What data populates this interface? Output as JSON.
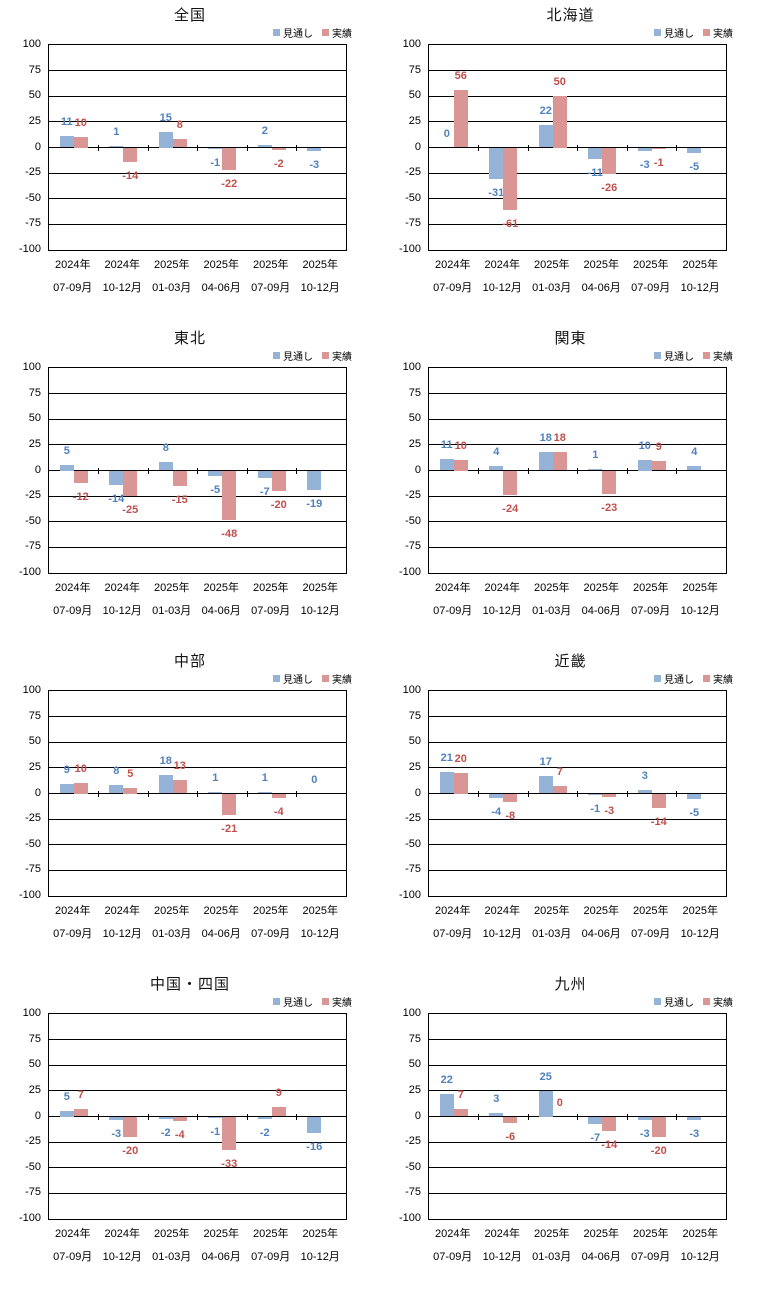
{
  "legend": {
    "forecast_label": "見通し",
    "actual_label": "実績"
  },
  "colors": {
    "forecast_bar": "#95B3D7",
    "actual_bar": "#D99694",
    "forecast_label": "#4F81BD",
    "actual_label": "#C0504D",
    "axis_line": "#000000",
    "text": "#000000"
  },
  "axis": {
    "y_ticks": [
      100,
      75,
      50,
      25,
      0,
      -25,
      -50,
      -75,
      -100
    ],
    "y_min": -100,
    "y_max": 100,
    "grid": true
  },
  "chart_data": [
    {
      "type": "bar",
      "title": "全国",
      "ylim": [
        -100,
        100
      ],
      "categories": [
        [
          "2024年",
          "07-09月"
        ],
        [
          "2024年",
          "10-12月"
        ],
        [
          "2025年",
          "01-03月"
        ],
        [
          "2025年",
          "04-06月"
        ],
        [
          "2025年",
          "07-09月"
        ],
        [
          "2025年",
          "10-12月"
        ]
      ],
      "series": [
        {
          "name": "見通し",
          "values": [
            11,
            1,
            15,
            -1,
            2,
            -3
          ]
        },
        {
          "name": "実績",
          "values": [
            10,
            -14,
            8,
            -22,
            -2,
            null
          ]
        }
      ]
    },
    {
      "type": "bar",
      "title": "北海道",
      "ylim": [
        -100,
        100
      ],
      "categories": [
        [
          "2024年",
          "07-09月"
        ],
        [
          "2024年",
          "10-12月"
        ],
        [
          "2025年",
          "01-03月"
        ],
        [
          "2025年",
          "04-06月"
        ],
        [
          "2025年",
          "07-09月"
        ],
        [
          "2025年",
          "10-12月"
        ]
      ],
      "series": [
        {
          "name": "見通し",
          "values": [
            0,
            -31,
            22,
            -11,
            -3,
            -5
          ]
        },
        {
          "name": "実績",
          "values": [
            56,
            -61,
            50,
            -26,
            -1,
            null
          ]
        }
      ]
    },
    {
      "type": "bar",
      "title": "東北",
      "ylim": [
        -100,
        100
      ],
      "categories": [
        [
          "2024年",
          "07-09月"
        ],
        [
          "2024年",
          "10-12月"
        ],
        [
          "2025年",
          "01-03月"
        ],
        [
          "2025年",
          "04-06月"
        ],
        [
          "2025年",
          "07-09月"
        ],
        [
          "2025年",
          "10-12月"
        ]
      ],
      "series": [
        {
          "name": "見通し",
          "values": [
            5,
            -14,
            8,
            -5,
            -7,
            -19
          ]
        },
        {
          "name": "実績",
          "values": [
            -12,
            -25,
            -15,
            -48,
            -20,
            null
          ]
        }
      ]
    },
    {
      "type": "bar",
      "title": "関東",
      "ylim": [
        -100,
        100
      ],
      "categories": [
        [
          "2024年",
          "07-09月"
        ],
        [
          "2024年",
          "10-12月"
        ],
        [
          "2025年",
          "01-03月"
        ],
        [
          "2025年",
          "04-06月"
        ],
        [
          "2025年",
          "07-09月"
        ],
        [
          "2025年",
          "10-12月"
        ]
      ],
      "series": [
        {
          "name": "見通し",
          "values": [
            11,
            4,
            18,
            1,
            10,
            4
          ]
        },
        {
          "name": "実績",
          "values": [
            10,
            -24,
            18,
            -23,
            9,
            null
          ]
        }
      ]
    },
    {
      "type": "bar",
      "title": "中部",
      "ylim": [
        -100,
        100
      ],
      "categories": [
        [
          "2024年",
          "07-09月"
        ],
        [
          "2024年",
          "10-12月"
        ],
        [
          "2025年",
          "01-03月"
        ],
        [
          "2025年",
          "04-06月"
        ],
        [
          "2025年",
          "07-09月"
        ],
        [
          "2025年",
          "10-12月"
        ]
      ],
      "series": [
        {
          "name": "見通し",
          "values": [
            9,
            8,
            18,
            1,
            1,
            0
          ]
        },
        {
          "name": "実績",
          "values": [
            10,
            5,
            13,
            -21,
            -4,
            null
          ]
        }
      ]
    },
    {
      "type": "bar",
      "title": "近畿",
      "ylim": [
        -100,
        100
      ],
      "categories": [
        [
          "2024年",
          "07-09月"
        ],
        [
          "2024年",
          "10-12月"
        ],
        [
          "2025年",
          "01-03月"
        ],
        [
          "2025年",
          "04-06月"
        ],
        [
          "2025年",
          "07-09月"
        ],
        [
          "2025年",
          "10-12月"
        ]
      ],
      "series": [
        {
          "name": "見通し",
          "values": [
            21,
            -4,
            17,
            -1,
            3,
            -5
          ]
        },
        {
          "name": "実績",
          "values": [
            20,
            -8,
            7,
            -3,
            -14,
            null
          ]
        }
      ]
    },
    {
      "type": "bar",
      "title": "中国・四国",
      "ylim": [
        -100,
        100
      ],
      "categories": [
        [
          "2024年",
          "07-09月"
        ],
        [
          "2024年",
          "10-12月"
        ],
        [
          "2025年",
          "01-03月"
        ],
        [
          "2025年",
          "04-06月"
        ],
        [
          "2025年",
          "07-09月"
        ],
        [
          "2025年",
          "10-12月"
        ]
      ],
      "series": [
        {
          "name": "見通し",
          "values": [
            5,
            -3,
            -2,
            -1,
            -2,
            -16
          ]
        },
        {
          "name": "実績",
          "values": [
            7,
            -20,
            -4,
            -33,
            9,
            null
          ]
        }
      ]
    },
    {
      "type": "bar",
      "title": "九州",
      "ylim": [
        -100,
        100
      ],
      "categories": [
        [
          "2024年",
          "07-09月"
        ],
        [
          "2024年",
          "10-12月"
        ],
        [
          "2025年",
          "01-03月"
        ],
        [
          "2025年",
          "04-06月"
        ],
        [
          "2025年",
          "07-09月"
        ],
        [
          "2025年",
          "10-12月"
        ]
      ],
      "series": [
        {
          "name": "見通し",
          "values": [
            22,
            3,
            25,
            -7,
            -3,
            -3
          ]
        },
        {
          "name": "実績",
          "values": [
            7,
            -6,
            0,
            -14,
            -20,
            null
          ]
        }
      ]
    }
  ]
}
